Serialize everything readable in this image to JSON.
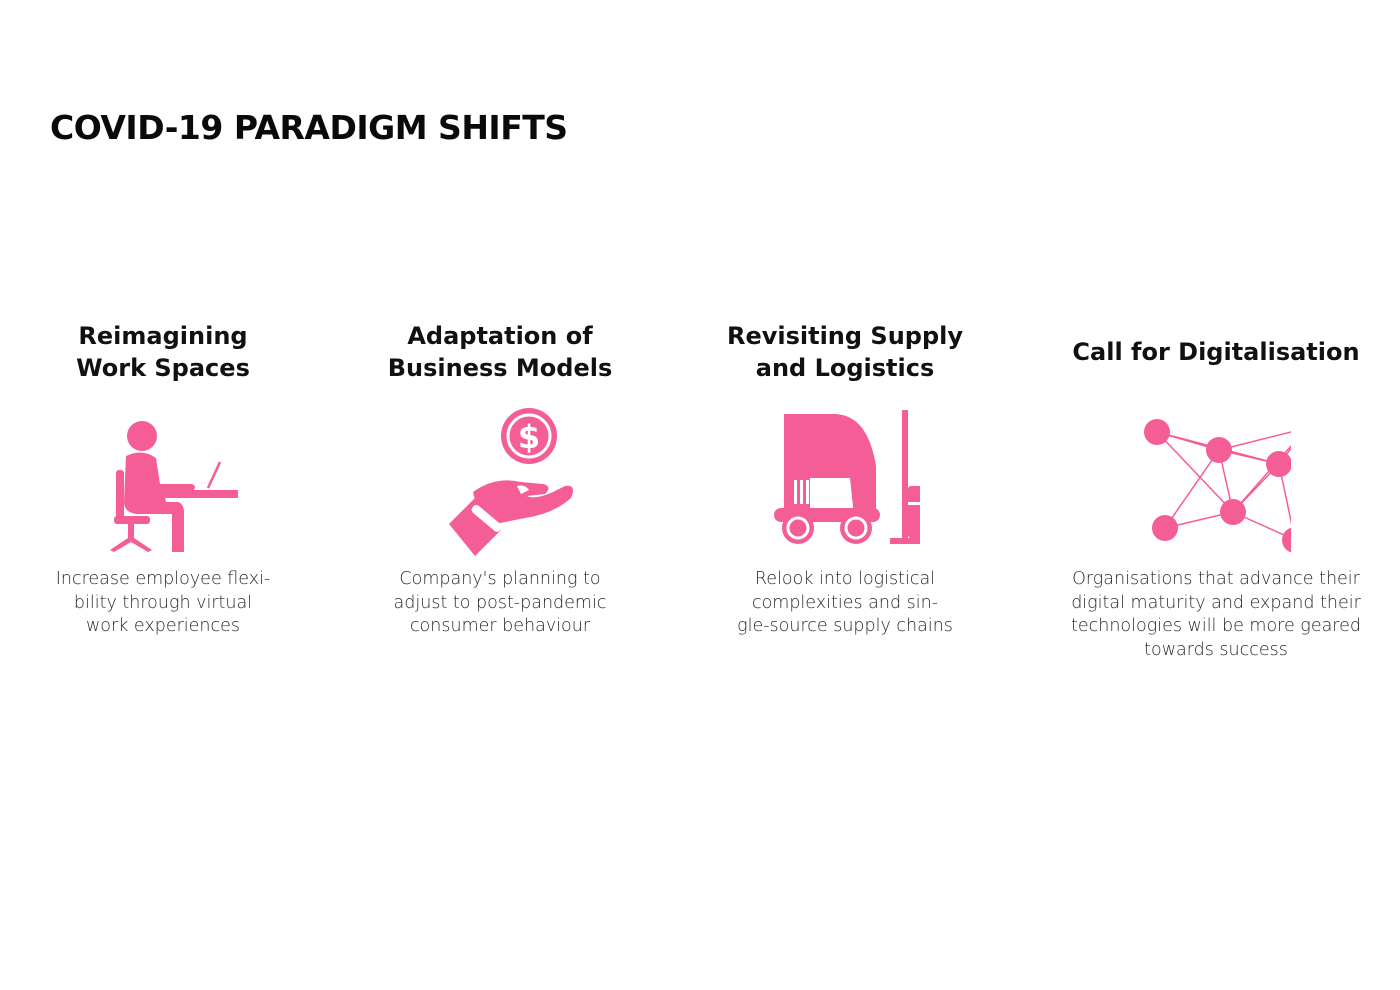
{
  "title": "COVID-19 PARADIGM SHIFTS",
  "accent_color": "#f45d96",
  "columns": [
    {
      "heading": "Reimagining\nWork Spaces",
      "icon": "person-at-desk-laptop-icon",
      "description": "Increase employee flexi-\nbility through virtual\nwork experiences"
    },
    {
      "heading": "Adaptation of\nBusiness Models",
      "icon": "hand-holding-dollar-coin-icon",
      "description": "Company's planning to\nadjust to post-pandemic\nconsumer behaviour"
    },
    {
      "heading": "Revisiting Supply\nand Logistics",
      "icon": "forklift-with-box-icon",
      "description": "Relook into logistical\ncomplexities and sin-\ngle-source supply chains"
    },
    {
      "heading": "Call for Digitalisation",
      "icon": "network-nodes-icon",
      "description": "Organisations that advance their\ndigital maturity and expand their\ntechnologies will be more geared\ntowards success"
    }
  ]
}
